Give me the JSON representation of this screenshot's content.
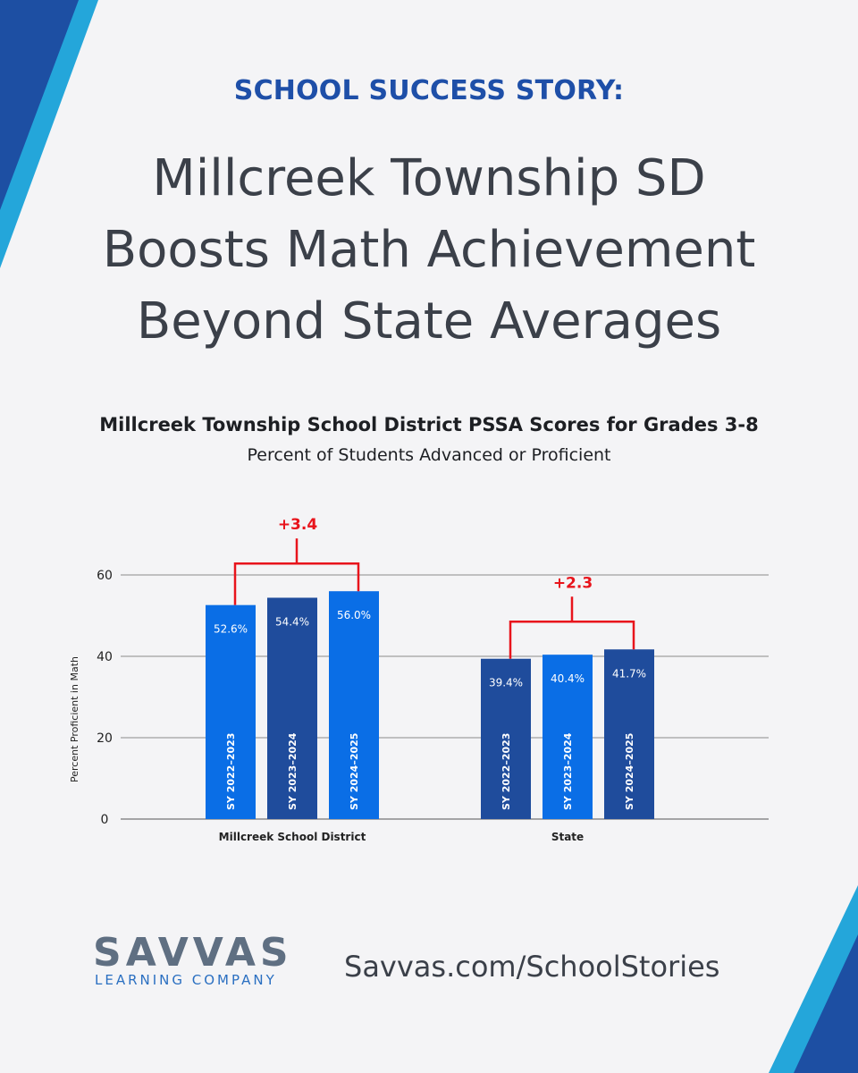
{
  "header": {
    "eyebrow": "SCHOOL SUCCESS STORY:",
    "headline_lines": [
      "Millcreek Township SD",
      "Boosts Math Achievement",
      "Beyond State Averages"
    ]
  },
  "chart_data": {
    "type": "bar",
    "title": "Millcreek Township School District PSSA Scores for Grades 3-8",
    "subtitle": "Percent of Students Advanced or Proficient",
    "ylabel": "Percent Proficient in Math",
    "ylim": [
      0,
      60
    ],
    "yticks": [
      0,
      20,
      40,
      60
    ],
    "grid": true,
    "groups": [
      {
        "name": "Millcreek School District",
        "bars": [
          {
            "label": "SY 2022–2023",
            "value": 52.6,
            "value_label": "52.6%",
            "color": "#0a6ee6"
          },
          {
            "label": "SY 2023–2024",
            "value": 54.4,
            "value_label": "54.4%",
            "color": "#1f4c9c"
          },
          {
            "label": "SY 2024–2025",
            "value": 56.0,
            "value_label": "56.0%",
            "color": "#0a6ee6"
          }
        ],
        "change_label": "+3.4"
      },
      {
        "name": "State",
        "bars": [
          {
            "label": "SY 2022–2023",
            "value": 39.4,
            "value_label": "39.4%",
            "color": "#1f4c9c"
          },
          {
            "label": "SY 2023–2024",
            "value": 40.4,
            "value_label": "40.4%",
            "color": "#0a6ee6"
          },
          {
            "label": "SY 2024–2025",
            "value": 41.7,
            "value_label": "41.7%",
            "color": "#1f4c9c"
          }
        ],
        "change_label": "+2.3"
      }
    ],
    "annotation_color": "#e8141c"
  },
  "footer": {
    "logo_word": "SAVVAS",
    "logo_sub": "LEARNING COMPANY",
    "url": "Savvas.com/SchoolStories"
  },
  "colors": {
    "accent_dark": "#1e4fa8",
    "accent_light": "#1fa3d8"
  }
}
